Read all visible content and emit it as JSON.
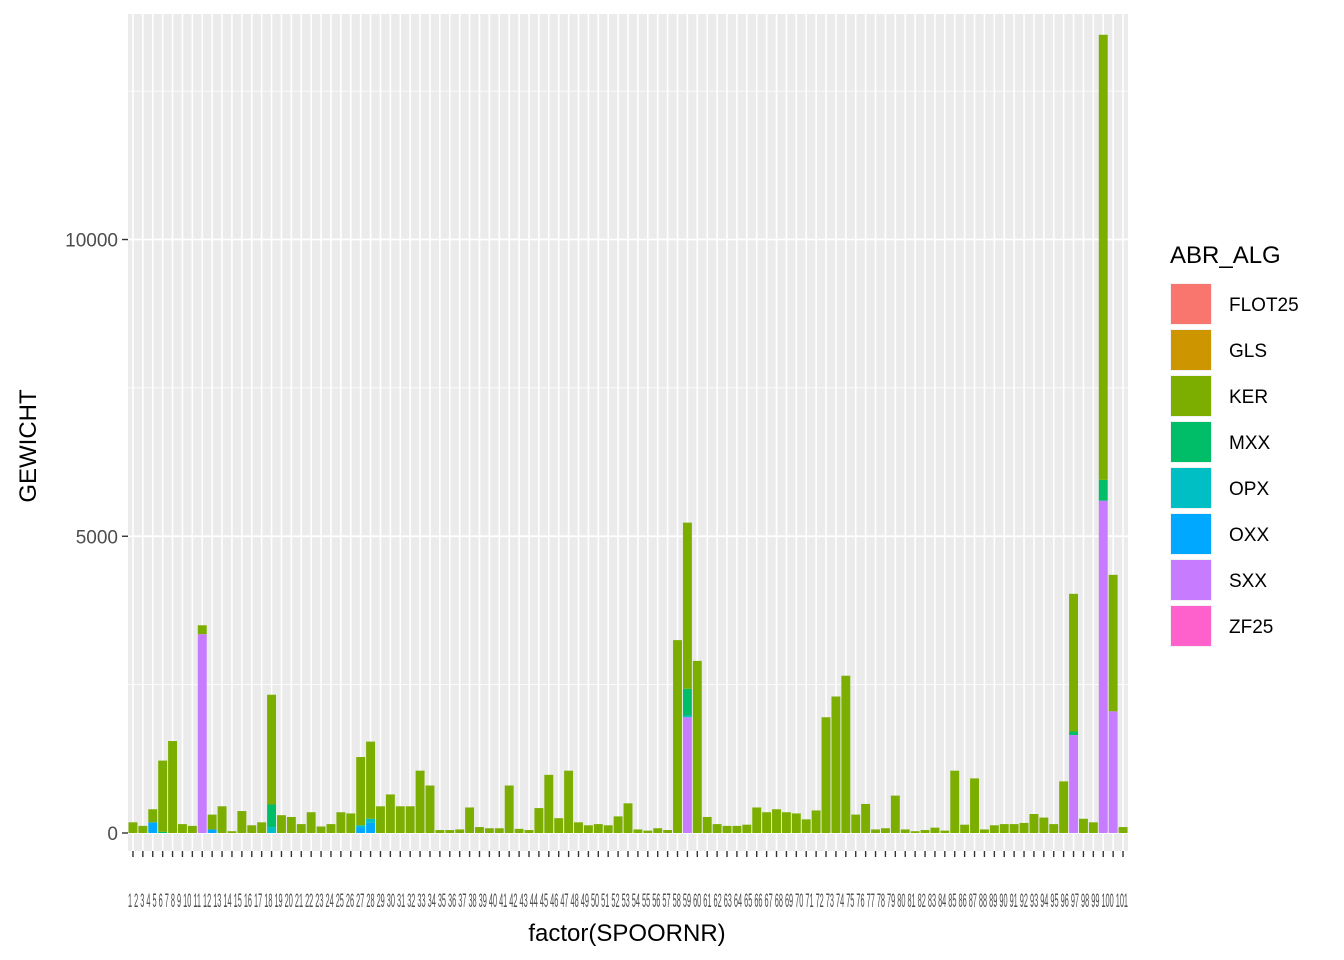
{
  "chart_data": {
    "type": "bar",
    "stacked": true,
    "xlabel": "factor(SPOORNR)",
    "ylabel": "GEWICHT",
    "ylim": [
      0,
      13800
    ],
    "yticks": [
      0,
      5000,
      10000
    ],
    "ytick_labels": [
      "0",
      "5000",
      "10000"
    ],
    "grid": true,
    "legend": {
      "title": "ABR_ALG",
      "position": "right"
    },
    "colors": {
      "FLOT25": "#F8766D",
      "GLS": "#CD9600",
      "KER": "#7CAE00",
      "MXX": "#00BE67",
      "OPX": "#00BFC4",
      "OXX": "#00A9FF",
      "SXX": "#C77CFF",
      "ZF25": "#FF61CC"
    },
    "categories_note": "x tick labels are overplotted and illegible; categories are 1..N",
    "x_tick_text": "1 2 3 4 5 6 7 8 9 10 11 12 13 14 15 16 17 18 19 20 21 22 23 24 25 26 27 28 29 30 31 32 33 34 35 36 37 38 39 40 41 42 43 44 45 46 47 48 49 50 51 52 53 54 55 56 57 58 59 60 61 62 63 64 65 66 67 68 69 70 71 72 73 74 75 76 77 78 79 80 81 82 83 84 85 86 87 88 89 90 91 92 93 94 95 96 97 98 99 100 101",
    "series": [
      {
        "name": "FLOT25",
        "values": []
      },
      {
        "name": "GLS",
        "values": []
      },
      {
        "name": "KER",
        "values": [
          180,
          120,
          220,
          1200,
          1550,
          150,
          120,
          150,
          250,
          450,
          30,
          370,
          130,
          180,
          1850,
          300,
          270,
          150,
          350,
          110,
          150,
          350,
          330,
          1150,
          1300,
          450,
          650,
          450,
          450,
          1050,
          800,
          50,
          50,
          60,
          430,
          100,
          80,
          80,
          800,
          70,
          50,
          420,
          980,
          250,
          1050,
          180,
          130,
          150,
          130,
          280,
          500,
          60,
          40,
          80,
          50,
          3250,
          2800,
          2900,
          270,
          150,
          120,
          120,
          140,
          430,
          350,
          400,
          350,
          330,
          230,
          380,
          1950,
          2300,
          2650,
          310,
          490,
          60,
          80,
          630,
          60,
          30,
          50,
          90,
          40,
          1050,
          140,
          920,
          60,
          130,
          150,
          150,
          170,
          320,
          260,
          150,
          870,
          2320,
          240,
          180,
          7500,
          2300,
          100
        ]
      },
      {
        "name": "MXX",
        "values": [
          0,
          0,
          0,
          20,
          0,
          0,
          0,
          0,
          0,
          0,
          0,
          0,
          0,
          0,
          380,
          0,
          0,
          0,
          0,
          0,
          0,
          0,
          0,
          0,
          0,
          0,
          0,
          0,
          0,
          0,
          0,
          0,
          0,
          0,
          0,
          0,
          0,
          0,
          0,
          0,
          0,
          0,
          0,
          0,
          0,
          0,
          0,
          0,
          0,
          0,
          0,
          0,
          0,
          0,
          0,
          0,
          450,
          0,
          0,
          0,
          0,
          0,
          0,
          0,
          0,
          0,
          0,
          0,
          0,
          0,
          0,
          0,
          0,
          0,
          0,
          0,
          0,
          0,
          0,
          0,
          0,
          0,
          0,
          0,
          0,
          0,
          0,
          0,
          0,
          0,
          0,
          0,
          0,
          0,
          0,
          60,
          0,
          0,
          350,
          0,
          0
        ]
      },
      {
        "name": "OPX",
        "values": [
          0,
          0,
          0,
          0,
          0,
          0,
          0,
          0,
          0,
          0,
          0,
          0,
          0,
          0,
          100,
          0,
          0,
          0,
          0,
          0,
          0,
          0,
          0,
          30,
          70,
          0,
          0,
          0,
          0,
          0,
          0,
          0,
          0,
          0,
          0,
          0,
          0,
          0,
          0,
          0,
          0,
          0,
          0,
          0,
          0,
          0,
          0,
          0,
          0,
          0,
          0,
          0,
          0,
          0,
          0,
          0,
          30,
          0,
          0,
          0,
          0,
          0,
          0,
          0,
          0,
          0,
          0,
          0,
          0,
          0,
          0,
          0,
          0,
          0,
          0,
          0,
          0,
          0,
          0,
          0,
          0,
          0,
          0,
          0,
          0,
          0,
          0,
          0,
          0,
          0,
          0,
          0,
          0,
          0,
          0,
          0,
          0,
          0,
          0,
          0,
          0
        ]
      },
      {
        "name": "OXX",
        "values": [
          0,
          0,
          180,
          0,
          0,
          0,
          0,
          0,
          60,
          0,
          0,
          0,
          0,
          0,
          0,
          0,
          0,
          0,
          0,
          0,
          0,
          0,
          0,
          100,
          170,
          0,
          0,
          0,
          0,
          0,
          0,
          0,
          0,
          0,
          0,
          0,
          0,
          0,
          0,
          0,
          0,
          0,
          0,
          0,
          0,
          0,
          0,
          0,
          0,
          0,
          0,
          0,
          0,
          0,
          0,
          0,
          0,
          0,
          0,
          0,
          0,
          0,
          0,
          0,
          0,
          0,
          0,
          0,
          0,
          0,
          0,
          0,
          0,
          0,
          0,
          0,
          0,
          0,
          0,
          0,
          0,
          0,
          0,
          0,
          0,
          0,
          0,
          0,
          0,
          0,
          0,
          0,
          0,
          0,
          0,
          0,
          0,
          0,
          0,
          0,
          0
        ]
      },
      {
        "name": "SXX",
        "values": [
          0,
          0,
          0,
          0,
          0,
          0,
          0,
          3350,
          0,
          0,
          0,
          0,
          0,
          0,
          0,
          0,
          0,
          0,
          0,
          0,
          0,
          0,
          0,
          0,
          0,
          0,
          0,
          0,
          0,
          0,
          0,
          0,
          0,
          0,
          0,
          0,
          0,
          0,
          0,
          0,
          0,
          0,
          0,
          0,
          0,
          0,
          0,
          0,
          0,
          0,
          0,
          0,
          0,
          0,
          0,
          0,
          1950,
          0,
          0,
          0,
          0,
          0,
          0,
          0,
          0,
          0,
          0,
          0,
          0,
          0,
          0,
          0,
          0,
          0,
          0,
          0,
          0,
          0,
          0,
          0,
          0,
          0,
          0,
          0,
          0,
          0,
          0,
          0,
          0,
          0,
          0,
          0,
          0,
          0,
          0,
          1650,
          0,
          0,
          5600,
          2050,
          0
        ]
      },
      {
        "name": "ZF25",
        "values": []
      }
    ]
  }
}
